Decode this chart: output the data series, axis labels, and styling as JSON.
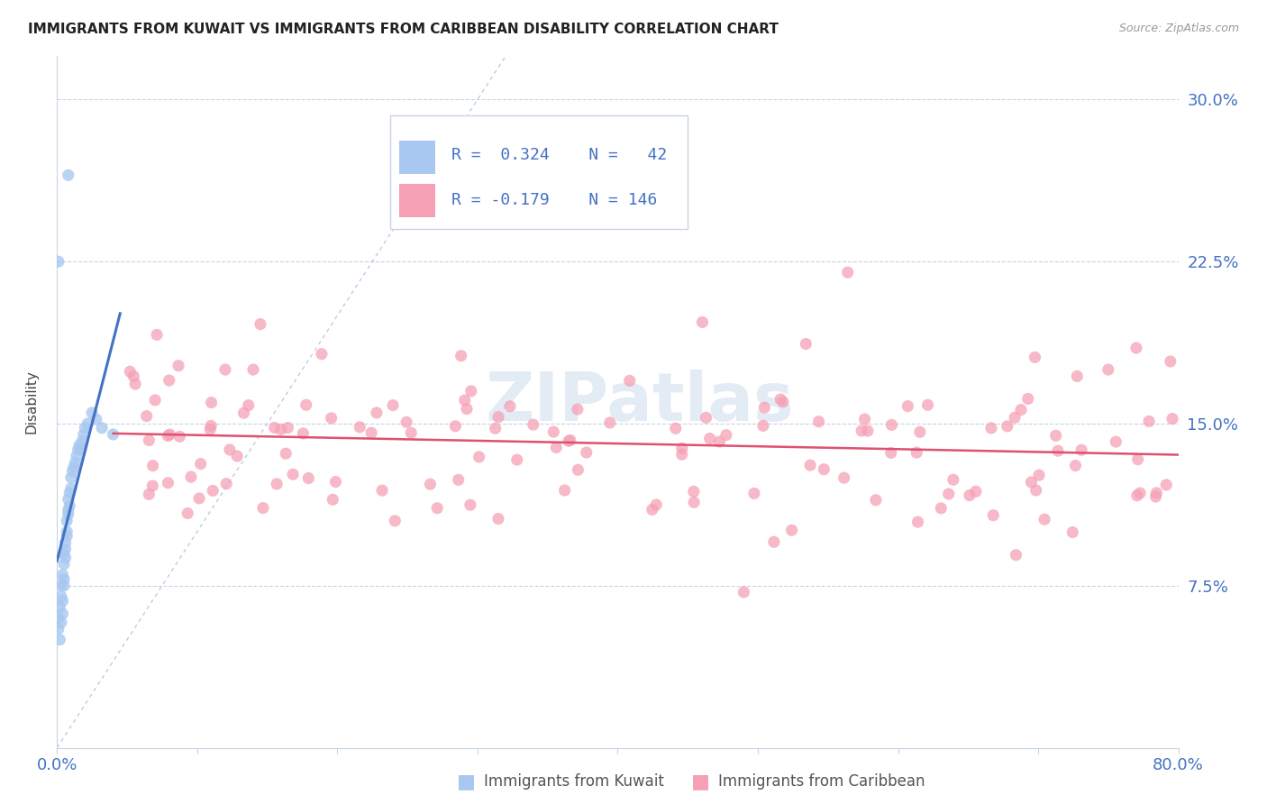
{
  "title": "IMMIGRANTS FROM KUWAIT VS IMMIGRANTS FROM CARIBBEAN DISABILITY CORRELATION CHART",
  "source": "Source: ZipAtlas.com",
  "ylabel": "Disability",
  "ytick_labels": [
    "",
    "7.5%",
    "15.0%",
    "22.5%",
    "30.0%"
  ],
  "ytick_values": [
    0.0,
    0.075,
    0.15,
    0.225,
    0.3
  ],
  "xmin": 0.0,
  "xmax": 0.8,
  "ymin": 0.0,
  "ymax": 0.32,
  "color_kuwait": "#a8c8f0",
  "color_caribbean": "#f5a0b5",
  "color_line_kuwait": "#4472c4",
  "color_line_caribbean": "#e05070",
  "color_diag": "#a0b8d8",
  "color_text_blue": "#4472c4",
  "color_grid": "#c8d4e4",
  "legend_box_color": "#e8eef6"
}
